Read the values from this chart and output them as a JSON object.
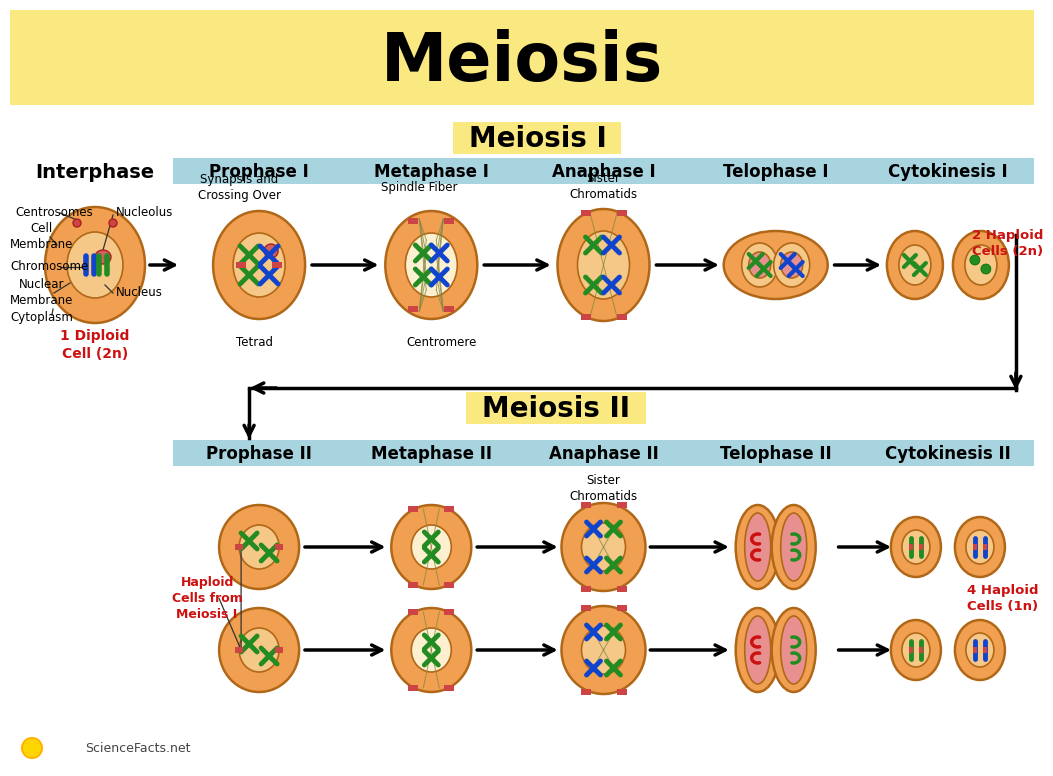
{
  "title": "Meiosis",
  "title_bg": "#FAE880",
  "bg_color": "#FFFFFF",
  "header_bg": "#A8D4E0",
  "meiosis_label_bg": "#FAE880",
  "meiosis1_label": "Meiosis I",
  "meiosis2_label": "Meiosis II",
  "meiosis1_stages": [
    "Interphase",
    "Prophase I",
    "Metaphase I",
    "Anaphase I",
    "Telophase I",
    "Cytokinesis I"
  ],
  "meiosis2_stages": [
    "Prophase II",
    "Metaphase II",
    "Anaphase II",
    "Telophase II",
    "Cytokinesis II"
  ],
  "interphase_red_label": "1 Diploid\nCell (2n)",
  "cytokinesis1_red_label": "2 Haploid\nCells (2n)",
  "cytokinesis2_red_label": "4 Haploid\nCells (1n)",
  "haploid_label": "Haploid\nCells from\nMeiosis I",
  "red_color": "#CC1111",
  "cell_orange": "#F0A050",
  "cell_peach": "#F5C888",
  "cell_pink": "#E89090",
  "cell_light": "#FDF0D0"
}
